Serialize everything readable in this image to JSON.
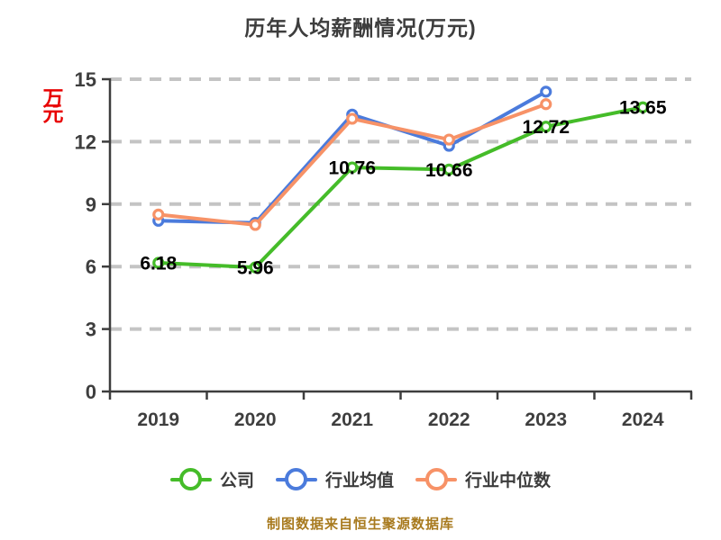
{
  "title": "历年人均薪酬情况(万元)",
  "y_axis_unit": "万元",
  "footer": "制图数据来自恒生聚源数据库",
  "legend": [
    {
      "label": "公司",
      "color": "#45BC29"
    },
    {
      "label": "行业均值",
      "color": "#4B7BDC"
    },
    {
      "label": "行业中位数",
      "color": "#F79267"
    }
  ],
  "colors": {
    "title_text": "#3D3D3D",
    "axis_line": "#3D3D3D",
    "tick_text": "#3E3E3E",
    "gridline": "#C4C4C4",
    "data_label": "#000000",
    "unit_label_red": "#E80000",
    "footer_gold": "#A87A1E",
    "marker_fill": "#FFFFFF"
  },
  "chart_data": {
    "type": "line",
    "title": "历年人均薪酬情况(万元)",
    "categories": [
      "2019",
      "2020",
      "2021",
      "2022",
      "2023",
      "2024"
    ],
    "series": [
      {
        "name": "公司",
        "color": "#45BC29",
        "show_labels": true,
        "values": [
          6.18,
          5.96,
          10.76,
          10.66,
          12.72,
          13.65
        ],
        "labels": [
          "6.18",
          "5.96",
          "10.76",
          "10.66",
          "12.72",
          "13.65"
        ]
      },
      {
        "name": "行业均值",
        "color": "#4B7BDC",
        "show_labels": false,
        "values": [
          8.2,
          8.1,
          13.3,
          11.8,
          14.4,
          null
        ]
      },
      {
        "name": "行业中位数",
        "color": "#F79267",
        "show_labels": false,
        "values": [
          8.5,
          8.0,
          13.1,
          12.1,
          13.8,
          null
        ]
      }
    ],
    "xlabel": "",
    "ylabel": "万元",
    "ylim": [
      0,
      15
    ],
    "yticks": [
      0,
      3,
      6,
      9,
      12,
      15
    ],
    "grid": "dashed-horizontal",
    "legend_position": "bottom",
    "marker": "circle-white-fill"
  }
}
